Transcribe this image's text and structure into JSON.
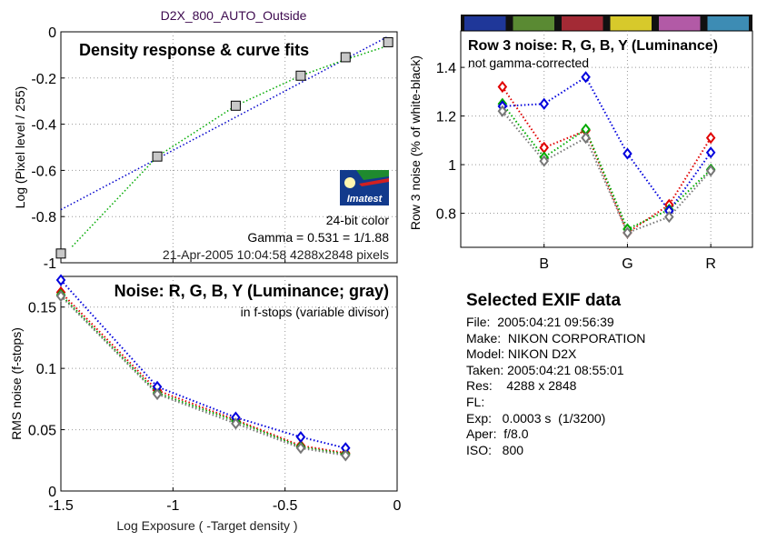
{
  "figure_title": "D2X_800_AUTO_Outside",
  "logo_text": "Imatest",
  "chart_data": [
    {
      "id": "density",
      "type": "line",
      "title": "Density response & curve fits",
      "xlabel": "",
      "ylabel": "Log (Pixel level / 255)",
      "xlim": [
        -1.5,
        0
      ],
      "ylim": [
        -1,
        0
      ],
      "x_ticks": [
        -1.5,
        -1,
        -0.5,
        0
      ],
      "y_ticks": [
        -1,
        -0.8,
        -0.6,
        -0.4,
        -0.2,
        0
      ],
      "y_tick_labels": [
        "-1",
        "-0.8",
        "-0.6",
        "-0.4",
        "-0.2",
        "0"
      ],
      "grid": true,
      "markers": {
        "x": [
          -1.5,
          -1.07,
          -0.72,
          -0.43,
          -0.23,
          -0.04
        ],
        "y": [
          -0.96,
          -0.54,
          -0.32,
          -0.19,
          -0.11,
          -0.045
        ]
      },
      "fit_lines": [
        {
          "color": "#0000cc",
          "x": [
            -1.5,
            -0.04
          ],
          "y": [
            -0.77,
            -0.02
          ]
        },
        {
          "color": "#00aa00",
          "x": [
            -1.45,
            -1.07,
            -0.72,
            -0.43,
            -0.23,
            -0.04
          ],
          "y": [
            -0.93,
            -0.54,
            -0.32,
            -0.19,
            -0.12,
            -0.06
          ]
        }
      ],
      "annotations": [
        "24-bit color",
        "Gamma = 0.531 = 1/1.88",
        "21-Apr-2005 10:04:58   4288x2848 pixels"
      ]
    },
    {
      "id": "noise",
      "type": "line",
      "title": "Noise: R, G, B, Y (Luminance; gray)",
      "subtitle": "in f-stops (variable divisor)",
      "xlabel": "Log Exposure ( -Target density )",
      "ylabel": "RMS noise (f-stops)",
      "xlim": [
        -1.5,
        0
      ],
      "ylim": [
        0,
        0.175
      ],
      "x_ticks": [
        -1.5,
        -1,
        -0.5,
        0
      ],
      "x_tick_labels": [
        "-1.5",
        "-1",
        "-0.5",
        "0"
      ],
      "y_ticks": [
        0,
        0.05,
        0.1,
        0.15
      ],
      "y_tick_labels": [
        "0",
        "0.05",
        "0.1",
        "0.15"
      ],
      "grid": true,
      "x": [
        -1.5,
        -1.07,
        -0.72,
        -0.43,
        -0.23
      ],
      "series": [
        {
          "color": "#e00000",
          "values": [
            0.162,
            0.082,
            0.058,
            0.037,
            0.031
          ]
        },
        {
          "color": "#00aa00",
          "values": [
            0.16,
            0.08,
            0.057,
            0.036,
            0.03
          ]
        },
        {
          "color": "#0000dd",
          "values": [
            0.172,
            0.085,
            0.06,
            0.044,
            0.035
          ]
        },
        {
          "color": "#777777",
          "values": [
            0.159,
            0.079,
            0.055,
            0.035,
            0.029
          ]
        }
      ]
    },
    {
      "id": "row3",
      "type": "line",
      "title": "Row 3 noise: R, G, B, Y (Luminance)",
      "subtitle": "not gamma-corrected",
      "xlabel": "",
      "ylabel": "Row 3 noise (% of white-black)",
      "xlim": [
        0,
        7
      ],
      "ylim": [
        0.66,
        1.55
      ],
      "y_ticks": [
        0.8,
        1,
        1.2,
        1.4
      ],
      "y_tick_labels": [
        "0.8",
        "1",
        "1.2",
        "1.4"
      ],
      "category_ticks": [
        {
          "x": 2,
          "label": "B"
        },
        {
          "x": 4,
          "label": "G"
        },
        {
          "x": 6,
          "label": "R"
        }
      ],
      "grid": true,
      "color_strip": [
        "#1f3799",
        "#5a8a33",
        "#a32a35",
        "#d7c92b",
        "#b25aa6",
        "#3d8cb4"
      ],
      "x": [
        1,
        2,
        3,
        4,
        5,
        6
      ],
      "series": [
        {
          "color": "#e00000",
          "values": [
            1.32,
            1.07,
            1.14,
            0.72,
            0.835,
            1.11
          ]
        },
        {
          "color": "#00aa00",
          "values": [
            1.25,
            1.03,
            1.145,
            0.735,
            0.815,
            0.98
          ]
        },
        {
          "color": "#0000dd",
          "values": [
            1.24,
            1.25,
            1.36,
            1.045,
            0.81,
            1.05
          ]
        },
        {
          "color": "#777777",
          "values": [
            1.22,
            1.015,
            1.11,
            0.72,
            0.785,
            0.975
          ]
        }
      ]
    }
  ],
  "exif": {
    "title": "Selected EXIF data",
    "rows": [
      "File:  2005:04:21 09:56:39",
      "Make:  NIKON CORPORATION",
      "Model: NIKON D2X",
      "Taken: 2005:04:21 08:55:01",
      "Res:    4288 x 2848",
      "FL:",
      "Exp:   0.0003 s  (1/3200)",
      "Aper:  f/8.0",
      "ISO:   800"
    ]
  }
}
